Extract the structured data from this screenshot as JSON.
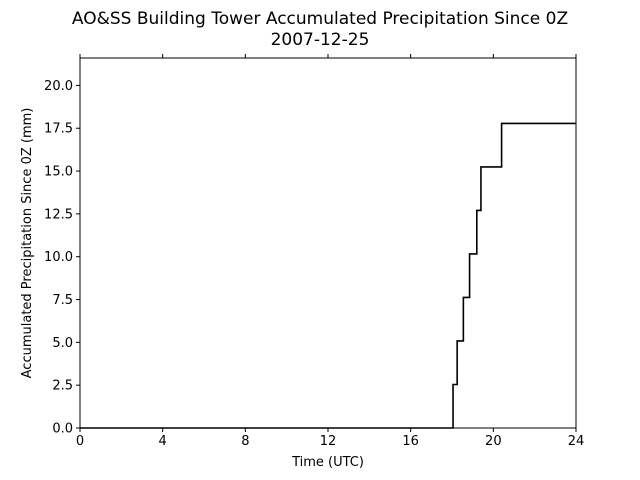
{
  "chart_data": {
    "type": "line",
    "title": "AO&SS Building Tower Accumulated Precipitation Since 0Z",
    "subtitle": "2007-12-25",
    "xlabel": "Time (UTC)",
    "ylabel": "Accumulated Precipitation Since 0Z (mm)",
    "xlim": [
      0,
      24
    ],
    "ylim": [
      0,
      21.6
    ],
    "xticks": [
      0,
      4,
      8,
      12,
      16,
      20,
      24
    ],
    "xtick_labels": [
      "0",
      "4",
      "8",
      "12",
      "16",
      "20",
      "24"
    ],
    "yticks": [
      0,
      2.5,
      5,
      7.5,
      10,
      12.5,
      15,
      17.5,
      20
    ],
    "ytick_labels": [
      "0.0",
      "2.5",
      "5.0",
      "7.5",
      "10.0",
      "12.5",
      "15.0",
      "17.5",
      "20.0"
    ],
    "grid": false,
    "legend": "none",
    "line_color": "#000000",
    "series": [
      {
        "step": true,
        "x": [
          0,
          18.05,
          18.25,
          18.55,
          18.85,
          19.2,
          19.4,
          20.4,
          24
        ],
        "y": [
          0,
          2.54,
          5.08,
          7.62,
          10.16,
          12.7,
          15.24,
          17.78,
          17.78
        ]
      }
    ]
  }
}
